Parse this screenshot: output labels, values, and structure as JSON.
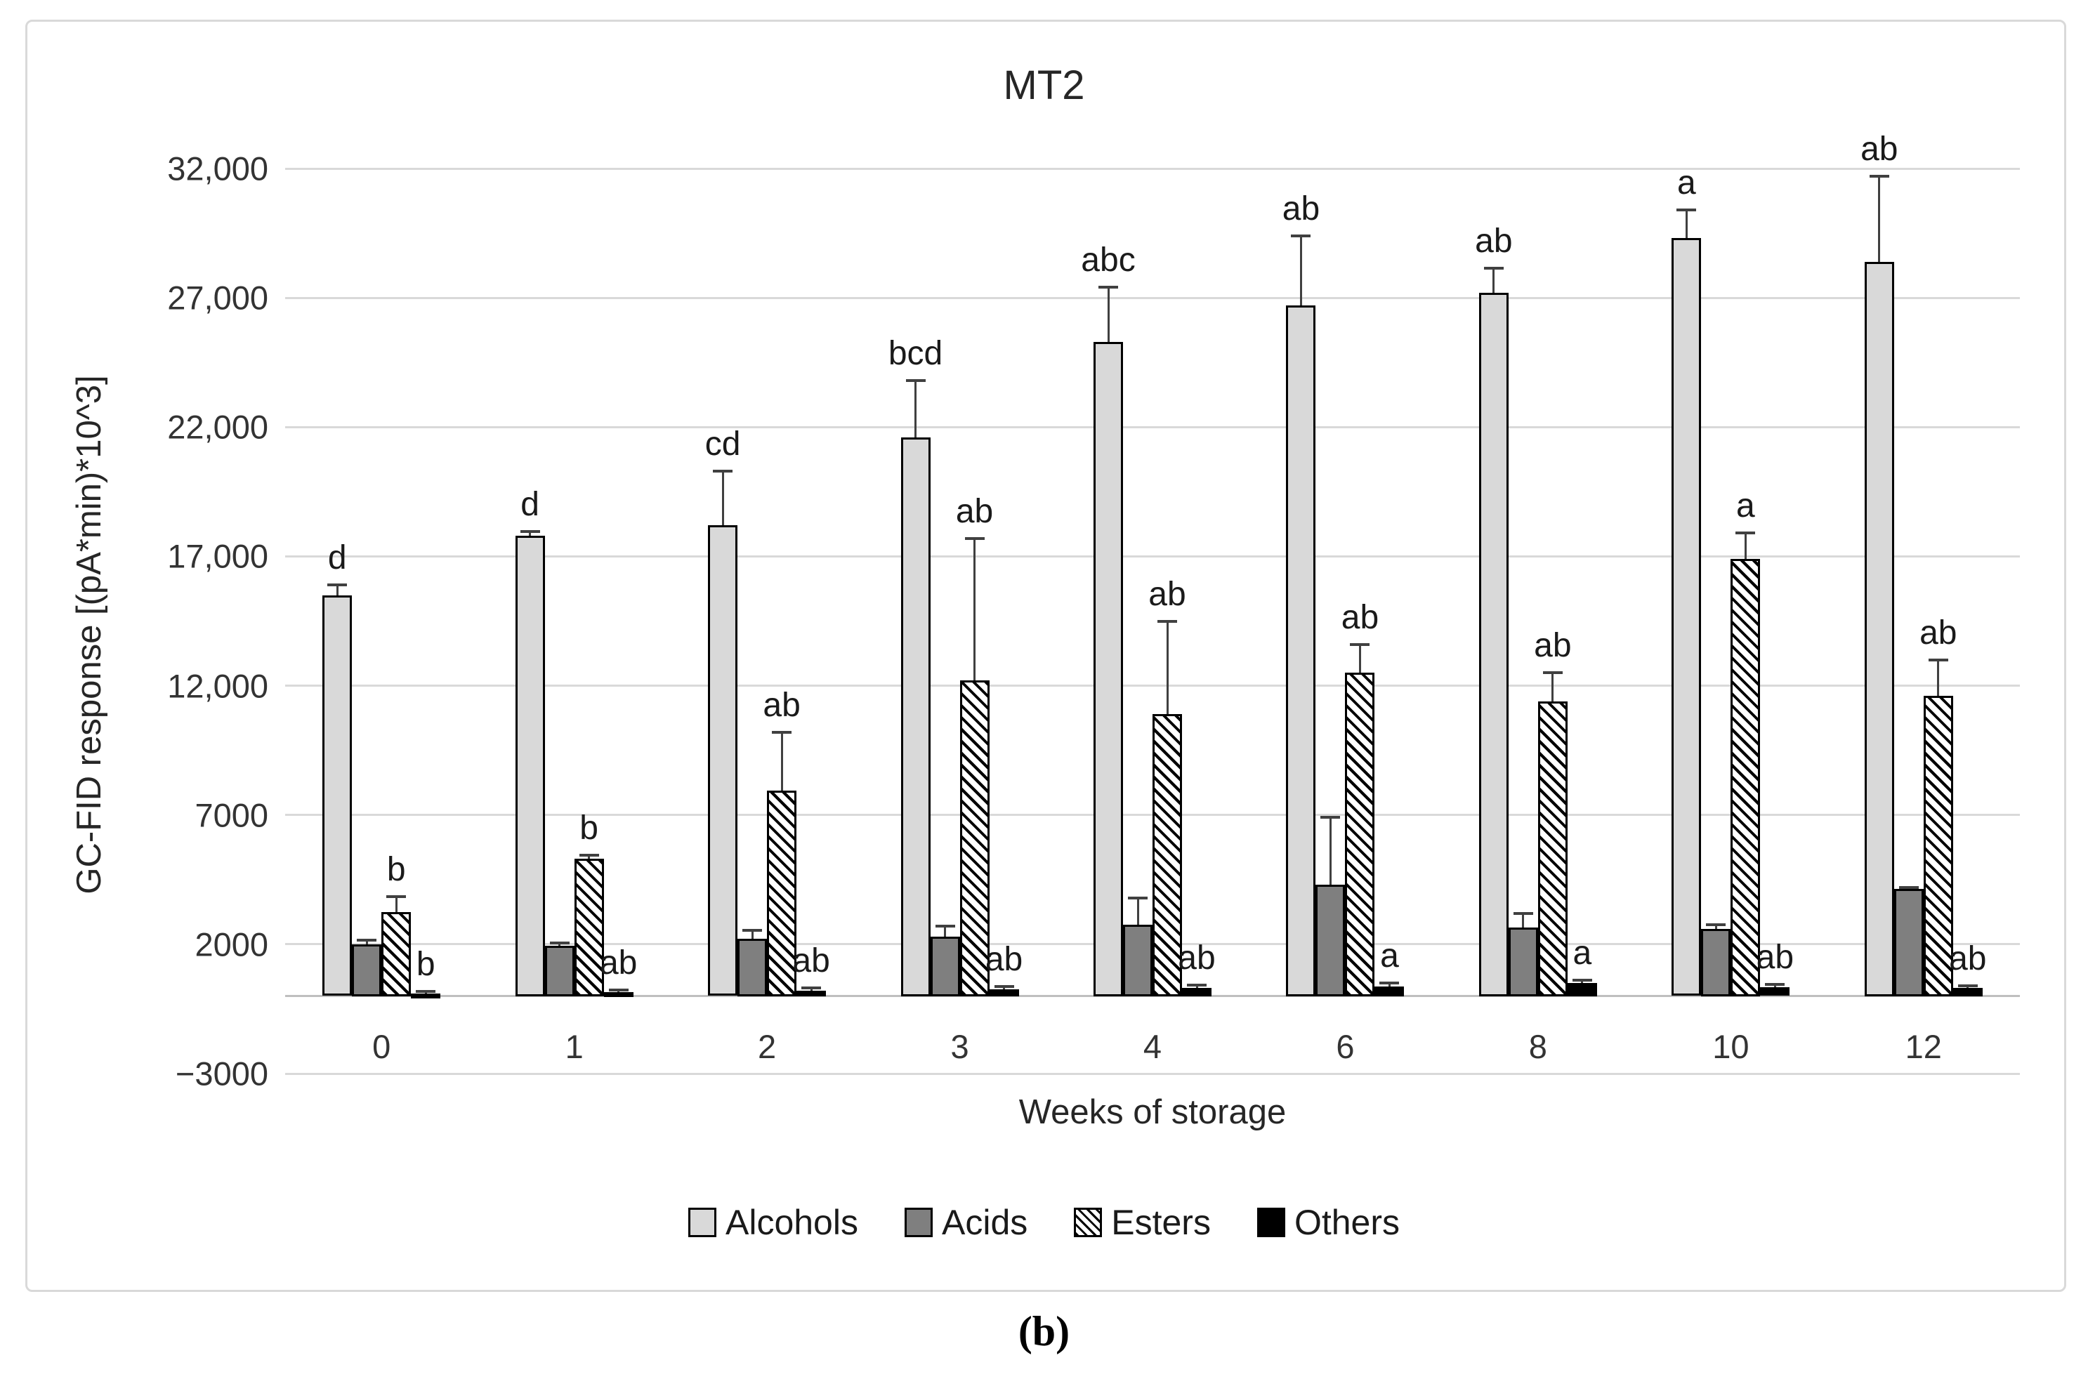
{
  "caption": "(b)",
  "colors": {
    "alcohols_fill": "#d9d9d9",
    "acids_fill": "#7f7f7f",
    "esters_fill": "#ffffff",
    "esters_hatch": "#000000",
    "others_fill": "#000000",
    "bar_outline": "#000000",
    "gridline": "#d9d9d9",
    "error_bar": "#404040",
    "frame_border": "#d9d9d9"
  },
  "chart_data": {
    "type": "bar",
    "title": "MT2",
    "xlabel": "Weeks of storage",
    "ylabel": "GC-FID response [(pA*min)*10^3]",
    "categories": [
      "0",
      "1",
      "2",
      "3",
      "4",
      "6",
      "8",
      "10",
      "12"
    ],
    "ylim": [
      -3000,
      32000
    ],
    "grid": true,
    "legend_position": "bottom",
    "yticks": [
      {
        "value": 32000,
        "label": "32,000"
      },
      {
        "value": 27000,
        "label": "27,000"
      },
      {
        "value": 22000,
        "label": "22,000"
      },
      {
        "value": 17000,
        "label": "17,000"
      },
      {
        "value": 12000,
        "label": "12,000"
      },
      {
        "value": 7000,
        "label": "7000"
      },
      {
        "value": 2000,
        "label": "2000"
      },
      {
        "value": -3000,
        "label": "−3000"
      }
    ],
    "series": [
      {
        "name": "Alcohols",
        "pattern": "solid",
        "fill": "#d9d9d9",
        "values": [
          15500,
          17800,
          18200,
          21600,
          25300,
          26700,
          27200,
          29300,
          28400
        ],
        "errors_top": [
          15900,
          17950,
          20300,
          23800,
          27400,
          29400,
          28150,
          30400,
          31700
        ],
        "letters": [
          "d",
          "d",
          "cd",
          "bcd",
          "abc",
          "ab",
          "ab",
          "a",
          "ab"
        ]
      },
      {
        "name": "Acids",
        "pattern": "solid",
        "fill": "#7f7f7f",
        "values": [
          2000,
          1950,
          2200,
          2300,
          2750,
          4300,
          2650,
          2600,
          4150
        ],
        "errors_top": [
          2150,
          2050,
          2550,
          2700,
          3800,
          6900,
          3200,
          2750,
          4200
        ],
        "letters": [
          "",
          "",
          "",
          "",
          "",
          "",
          "",
          "",
          ""
        ]
      },
      {
        "name": "Esters",
        "pattern": "hatch",
        "fill": "#ffffff",
        "values": [
          3250,
          5300,
          7950,
          12200,
          10900,
          12500,
          11400,
          16900,
          11600
        ],
        "errors_top": [
          3850,
          5450,
          10200,
          17700,
          14500,
          13600,
          12500,
          17900,
          13000
        ],
        "letters": [
          "b",
          "b",
          "ab",
          "ab",
          "ab",
          "ab",
          "ab",
          "a",
          "ab"
        ]
      },
      {
        "name": "Others",
        "pattern": "solid",
        "fill": "#000000",
        "values": [
          100,
          150,
          200,
          250,
          300,
          380,
          500,
          350,
          300
        ],
        "errors_top": [
          180,
          230,
          300,
          380,
          430,
          500,
          600,
          450,
          400
        ],
        "letters": [
          "b",
          "ab",
          "ab",
          "ab",
          "ab",
          "a",
          "a",
          "ab",
          "ab"
        ]
      }
    ]
  }
}
